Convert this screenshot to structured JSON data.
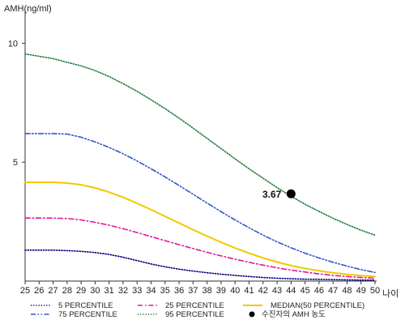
{
  "chart_data": {
    "type": "line",
    "ylabel": "AMH(ng/ml)",
    "xlabel": "나이",
    "x": [
      25,
      26,
      27,
      28,
      29,
      30,
      31,
      32,
      33,
      34,
      35,
      36,
      37,
      38,
      39,
      40,
      41,
      42,
      43,
      44,
      45,
      46,
      47,
      48,
      49,
      50
    ],
    "xlim": [
      25,
      50
    ],
    "ylim": [
      0,
      11
    ],
    "yticks": [
      5,
      10
    ],
    "grid": false,
    "legend_position": "bottom",
    "series": [
      {
        "name": "5 PERCENTILE",
        "color": "#000080",
        "dash": "dotted",
        "values": [
          1.3,
          1.3,
          1.3,
          1.28,
          1.25,
          1.2,
          1.12,
          1.0,
          0.86,
          0.72,
          0.6,
          0.5,
          0.42,
          0.35,
          0.29,
          0.24,
          0.19,
          0.15,
          0.12,
          0.1,
          0.08,
          0.07,
          0.06,
          0.05,
          0.04,
          0.04
        ]
      },
      {
        "name": "75 PERCENTILE",
        "color": "#3355cc",
        "dash": "dashdotdot",
        "values": [
          6.2,
          6.2,
          6.2,
          6.18,
          6.05,
          5.85,
          5.62,
          5.35,
          5.05,
          4.72,
          4.38,
          4.02,
          3.65,
          3.28,
          2.92,
          2.57,
          2.24,
          1.93,
          1.65,
          1.4,
          1.17,
          0.97,
          0.79,
          0.63,
          0.48,
          0.36
        ]
      },
      {
        "name": "25 PERCENTILE",
        "color": "#e0189a",
        "dash": "dashdot",
        "values": [
          2.65,
          2.65,
          2.65,
          2.63,
          2.57,
          2.47,
          2.35,
          2.2,
          2.04,
          1.87,
          1.7,
          1.53,
          1.37,
          1.21,
          1.06,
          0.92,
          0.79,
          0.67,
          0.56,
          0.46,
          0.38,
          0.3,
          0.24,
          0.19,
          0.15,
          0.12
        ]
      },
      {
        "name": "95 PERCENTILE",
        "color": "#1e7a3a",
        "dash": "dotted",
        "values": [
          9.55,
          9.45,
          9.35,
          9.2,
          9.05,
          8.85,
          8.6,
          8.3,
          7.98,
          7.62,
          7.25,
          6.85,
          6.43,
          6.0,
          5.57,
          5.14,
          4.72,
          4.32,
          3.93,
          3.57,
          3.23,
          2.93,
          2.64,
          2.38,
          2.14,
          1.93
        ]
      },
      {
        "name": "MEDIAN(50 PERCENTILE)",
        "color": "#f2c800",
        "dash": "solid",
        "values": [
          4.15,
          4.15,
          4.15,
          4.12,
          4.05,
          3.92,
          3.74,
          3.52,
          3.27,
          3.0,
          2.72,
          2.44,
          2.16,
          1.89,
          1.63,
          1.39,
          1.17,
          0.97,
          0.8,
          0.65,
          0.53,
          0.43,
          0.35,
          0.28,
          0.23,
          0.19
        ]
      }
    ],
    "highlight": {
      "name": "수진자의 AMH 농도",
      "x": 44,
      "y": 3.67,
      "label": "3.67",
      "color": "#000000"
    }
  }
}
